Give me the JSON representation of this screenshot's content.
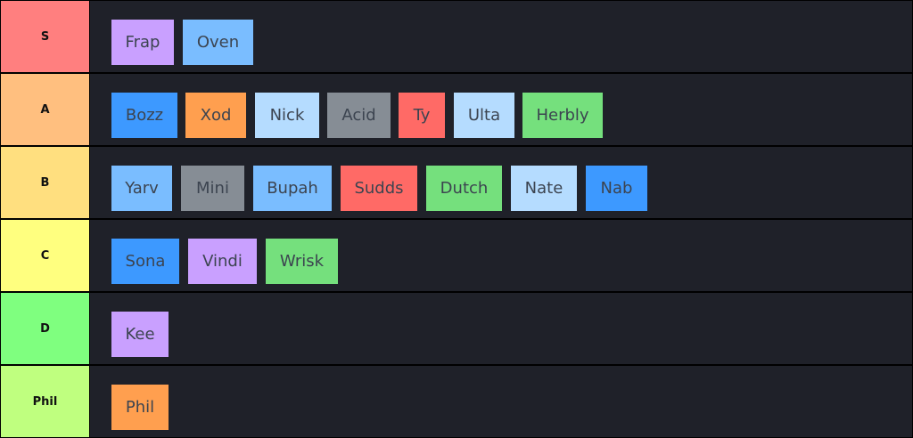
{
  "tiers": [
    {
      "label": "S",
      "color": "#ff7f7f",
      "items": [
        {
          "name": "Frap",
          "color": "purple"
        },
        {
          "name": "Oven",
          "color": "sky"
        }
      ]
    },
    {
      "label": "A",
      "color": "#ffbf7f",
      "items": [
        {
          "name": "Bozz",
          "color": "blue"
        },
        {
          "name": "Xod",
          "color": "orange"
        },
        {
          "name": "Nick",
          "color": "pale"
        },
        {
          "name": "Acid",
          "color": "gray"
        },
        {
          "name": "Ty",
          "color": "red"
        },
        {
          "name": "Ulta",
          "color": "pale"
        },
        {
          "name": "Herbly",
          "color": "green"
        }
      ]
    },
    {
      "label": "B",
      "color": "#ffdf7f",
      "items": [
        {
          "name": "Yarv",
          "color": "sky"
        },
        {
          "name": "Mini",
          "color": "gray"
        },
        {
          "name": "Bupah",
          "color": "sky"
        },
        {
          "name": "Sudds",
          "color": "red"
        },
        {
          "name": "Dutch",
          "color": "green"
        },
        {
          "name": "Nate",
          "color": "pale"
        },
        {
          "name": "Nab",
          "color": "blue"
        }
      ]
    },
    {
      "label": "C",
      "color": "#ffff7f",
      "items": [
        {
          "name": "Sona",
          "color": "blue"
        },
        {
          "name": "Vindi",
          "color": "purple"
        },
        {
          "name": "Wrisk",
          "color": "green"
        }
      ]
    },
    {
      "label": "D",
      "color": "#7fff7f",
      "items": [
        {
          "name": "Kee",
          "color": "purple"
        }
      ]
    },
    {
      "label": "Phil",
      "color": "#bfff7f",
      "items": [
        {
          "name": "Phil",
          "color": "orange"
        }
      ]
    }
  ]
}
